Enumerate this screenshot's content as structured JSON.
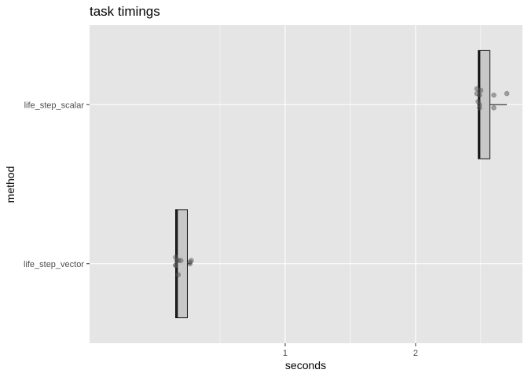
{
  "chart_data": {
    "type": "boxplot",
    "title": "task timings",
    "xlabel": "seconds",
    "ylabel": "method",
    "orientation": "horizontal",
    "xlim": [
      -0.5,
      2.82
    ],
    "x_ticks": [
      1,
      2
    ],
    "x_minor_ticks": [
      0.5,
      1.5,
      2.5
    ],
    "grid": true,
    "colors": {
      "panel_background": "#e5e5e5",
      "grid_line": "#ffffff",
      "box_fill": "#c8c8c8",
      "box_stroke": "#111111",
      "point": "#555555"
    },
    "categories": [
      "life_step_vector",
      "life_step_scalar"
    ],
    "series": [
      {
        "category": "life_step_vector",
        "box": {
          "min": 0.16,
          "q1": 0.16,
          "median": 0.17,
          "q3": 0.25,
          "max": 0.28
        },
        "points": [
          {
            "x": 0.16,
            "y": 0.04
          },
          {
            "x": 0.17,
            "y": 0.02
          },
          {
            "x": 0.16,
            "y": -0.01
          },
          {
            "x": 0.18,
            "y": 0.02
          },
          {
            "x": 0.16,
            "y": -0.01
          },
          {
            "x": 0.18,
            "y": -0.07
          },
          {
            "x": 0.27,
            "y": 0.0
          },
          {
            "x": 0.28,
            "y": 0.02
          },
          {
            "x": 0.27,
            "y": 0.01
          },
          {
            "x": 0.2,
            "y": 0.02
          }
        ]
      },
      {
        "category": "life_step_scalar",
        "box": {
          "min": 2.48,
          "q1": 2.48,
          "median": 2.49,
          "q3": 2.57,
          "max": 2.7
        },
        "points": [
          {
            "x": 2.47,
            "y": 0.1
          },
          {
            "x": 2.5,
            "y": 0.09
          },
          {
            "x": 2.47,
            "y": 0.07
          },
          {
            "x": 2.49,
            "y": 0.06
          },
          {
            "x": 2.48,
            "y": 0.02
          },
          {
            "x": 2.49,
            "y": 0.0
          },
          {
            "x": 2.49,
            "y": -0.02
          },
          {
            "x": 2.6,
            "y": 0.06
          },
          {
            "x": 2.6,
            "y": -0.02
          },
          {
            "x": 2.7,
            "y": 0.07
          }
        ]
      }
    ]
  }
}
